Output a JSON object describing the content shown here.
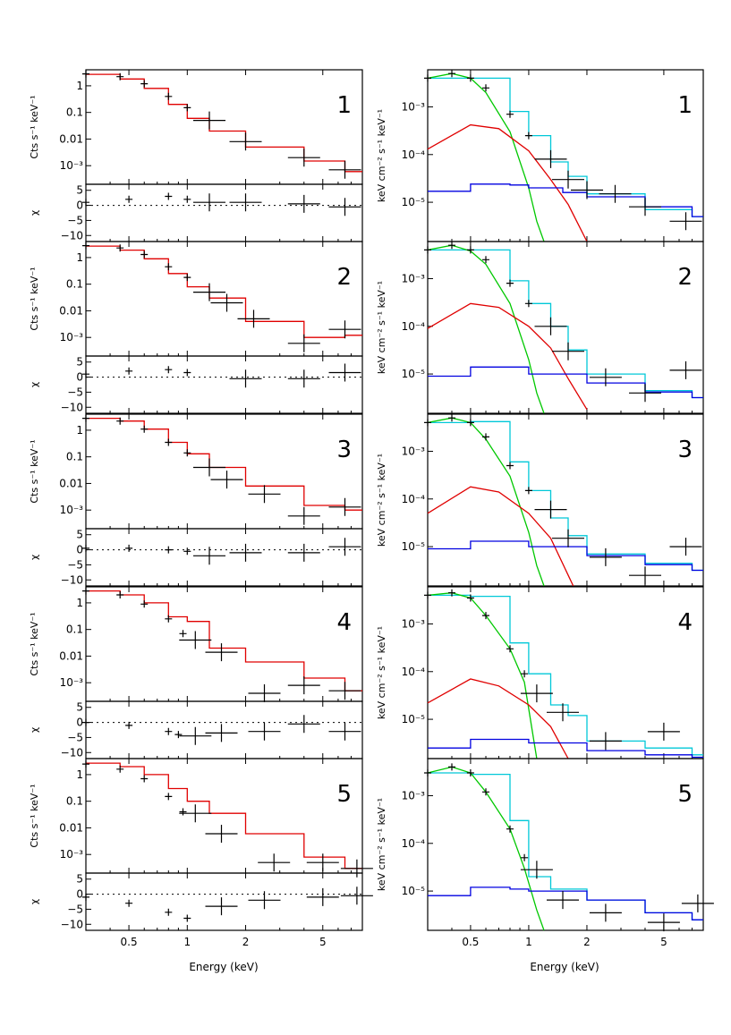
{
  "colors": {
    "data": "#000000",
    "model": "#e00000",
    "total": "#00c8d8",
    "soft": "#00c800",
    "mid": "#e00000",
    "hard": "#0000e0"
  },
  "left_ylabel": "Cts s⁻¹ keV⁻¹",
  "resid_ylabel": "χ",
  "right_ylabel": "keV cm⁻² s⁻¹ keV⁻¹",
  "xlabel": "Energy (keV)",
  "xticks": [
    "0.5",
    "1",
    "2",
    "5"
  ],
  "left_yticks": [
    "1",
    "0.1",
    "0.01",
    "10⁻³"
  ],
  "resid_yticks": [
    "5",
    "0",
    "−5",
    "−10"
  ],
  "right_yticks": [
    "10⁻³",
    "10⁻⁴",
    "10⁻⁵"
  ],
  "chart_data": [
    {
      "type": "line",
      "panel": "counts",
      "title": "1",
      "xlabel": "Energy (keV)",
      "ylabel": "Cts s⁻¹ keV⁻¹",
      "xlim": [
        0.3,
        8
      ],
      "ylim": [
        0.0002,
        4
      ],
      "series": [
        {
          "name": "data",
          "x": [
            0.3,
            0.45,
            0.6,
            0.8,
            1.0,
            1.3,
            2.0,
            4.0,
            6.5
          ],
          "y": [
            2.8,
            2.2,
            1.2,
            0.4,
            0.15,
            0.05,
            0.008,
            0.002,
            0.0007
          ]
        },
        {
          "name": "model",
          "x": [
            0.3,
            0.45,
            0.6,
            0.8,
            1.0,
            1.3,
            2.0,
            4.0,
            6.5
          ],
          "y": [
            2.7,
            1.8,
            0.8,
            0.2,
            0.06,
            0.02,
            0.005,
            0.0015,
            0.0006
          ]
        }
      ]
    },
    {
      "type": "scatter",
      "panel": "residuals",
      "title": "1",
      "ylabel": "χ",
      "ylim": [
        -12,
        7
      ],
      "x": [
        0.3,
        0.5,
        0.8,
        1.0,
        1.3,
        2.0,
        4.0,
        6.5
      ],
      "y": [
        1,
        2,
        3,
        2,
        1,
        1,
        0.5,
        -0.5
      ]
    },
    {
      "type": "line",
      "panel": "counts",
      "title": "2",
      "xlim": [
        0.3,
        8
      ],
      "ylim": [
        0.0002,
        4
      ],
      "series": [
        {
          "name": "data",
          "x": [
            0.3,
            0.45,
            0.6,
            0.8,
            1.0,
            1.3,
            1.6,
            2.2,
            4.0,
            6.5
          ],
          "y": [
            2.8,
            2.3,
            1.3,
            0.45,
            0.18,
            0.05,
            0.02,
            0.005,
            0.0006,
            0.002
          ]
        },
        {
          "name": "model",
          "x": [
            0.3,
            0.45,
            0.6,
            0.8,
            1.0,
            1.3,
            2.0,
            4.0,
            6.5
          ],
          "y": [
            2.7,
            1.9,
            0.9,
            0.25,
            0.08,
            0.03,
            0.004,
            0.001,
            0.0012
          ]
        }
      ]
    },
    {
      "type": "scatter",
      "panel": "residuals",
      "title": "2",
      "ylim": [
        -12,
        7
      ],
      "x": [
        0.3,
        0.5,
        0.8,
        1.0,
        2.0,
        4.0,
        6.5
      ],
      "y": [
        1,
        2,
        2.5,
        1.5,
        -0.5,
        -0.5,
        1.5
      ]
    },
    {
      "type": "line",
      "panel": "counts",
      "title": "3",
      "xlim": [
        0.3,
        8
      ],
      "ylim": [
        0.0002,
        4
      ],
      "series": [
        {
          "name": "data",
          "x": [
            0.3,
            0.45,
            0.6,
            0.8,
            1.0,
            1.3,
            1.6,
            2.5,
            4.0,
            6.5
          ],
          "y": [
            2.8,
            2.2,
            1.1,
            0.35,
            0.14,
            0.04,
            0.014,
            0.004,
            0.0006,
            0.0013
          ]
        },
        {
          "name": "model",
          "x": [
            0.3,
            0.45,
            0.6,
            0.8,
            1.0,
            1.3,
            2.0,
            4.0,
            6.5
          ],
          "y": [
            2.8,
            2.2,
            1.1,
            0.35,
            0.13,
            0.04,
            0.008,
            0.0015,
            0.001
          ]
        }
      ]
    },
    {
      "type": "scatter",
      "panel": "residuals",
      "title": "3",
      "ylim": [
        -12,
        7
      ],
      "x": [
        0.3,
        0.5,
        0.8,
        1.0,
        1.3,
        2.0,
        4.0,
        6.5
      ],
      "y": [
        0.5,
        0.5,
        0,
        -0.5,
        -2,
        -1,
        -1,
        1
      ]
    },
    {
      "type": "line",
      "panel": "counts",
      "title": "4",
      "xlim": [
        0.3,
        8
      ],
      "ylim": [
        0.0002,
        4
      ],
      "series": [
        {
          "name": "data",
          "x": [
            0.3,
            0.45,
            0.6,
            0.8,
            0.95,
            1.1,
            1.5,
            2.5,
            4.0,
            6.5
          ],
          "y": [
            2.8,
            2.0,
            0.9,
            0.25,
            0.07,
            0.04,
            0.014,
            0.0004,
            0.0008,
            0.0005
          ]
        },
        {
          "name": "model",
          "x": [
            0.3,
            0.45,
            0.6,
            0.8,
            1.0,
            1.3,
            2.0,
            4.0,
            6.5
          ],
          "y": [
            2.8,
            2.0,
            1.0,
            0.3,
            0.2,
            0.02,
            0.006,
            0.0015,
            0.0005
          ]
        }
      ]
    },
    {
      "type": "scatter",
      "panel": "residuals",
      "title": "4",
      "ylim": [
        -12,
        7
      ],
      "x": [
        0.3,
        0.5,
        0.8,
        0.9,
        1.1,
        1.5,
        2.5,
        4.0,
        6.5
      ],
      "y": [
        0,
        -1,
        -3,
        -4,
        -4.5,
        -3.5,
        -3,
        -0.5,
        -3
      ]
    },
    {
      "type": "line",
      "panel": "counts",
      "title": "5",
      "xlim": [
        0.3,
        8
      ],
      "ylim": [
        0.0002,
        4
      ],
      "series": [
        {
          "name": "data",
          "x": [
            0.3,
            0.45,
            0.6,
            0.8,
            0.95,
            1.1,
            1.5,
            2.8,
            5.0,
            7.5
          ],
          "y": [
            2.5,
            1.6,
            0.7,
            0.15,
            0.04,
            0.035,
            0.006,
            0.0005,
            0.0005,
            0.0003
          ]
        },
        {
          "name": "model",
          "x": [
            0.3,
            0.45,
            0.6,
            0.8,
            1.0,
            1.3,
            2.0,
            4.0,
            6.5
          ],
          "y": [
            2.7,
            2.0,
            1.0,
            0.3,
            0.1,
            0.035,
            0.006,
            0.0008,
            0.0003
          ]
        }
      ]
    },
    {
      "type": "scatter",
      "panel": "residuals",
      "title": "5",
      "ylim": [
        -12,
        7
      ],
      "x": [
        0.3,
        0.5,
        0.8,
        1.0,
        1.5,
        2.5,
        5.0,
        7.5
      ],
      "y": [
        -1,
        -3,
        -6,
        -8,
        -4,
        -2,
        -1,
        -0.5
      ]
    },
    {
      "type": "line",
      "panel": "unfolded",
      "title": "1",
      "ylabel": "keV cm⁻² s⁻¹ keV⁻¹",
      "xlim": [
        0.3,
        8
      ],
      "ylim": [
        1.5e-06,
        0.006
      ],
      "series": [
        {
          "name": "data",
          "x": [
            0.3,
            0.4,
            0.5,
            0.6,
            0.8,
            1.0,
            1.3,
            1.6,
            2.0,
            2.8,
            4.0,
            6.5
          ],
          "y": [
            0.004,
            0.005,
            0.004,
            0.0025,
            0.0007,
            0.00025,
            8e-05,
            3e-05,
            1.8e-05,
            1.5e-05,
            8e-06,
            4e-06
          ]
        },
        {
          "name": "total",
          "x": [
            0.3,
            0.5,
            0.8,
            1.0,
            1.3,
            1.6,
            2.0,
            4.0,
            7.0
          ],
          "y": [
            0.004,
            0.004,
            0.0008,
            0.00025,
            7e-05,
            3.5e-05,
            1.5e-05,
            7e-06,
            5e-06
          ]
        },
        {
          "name": "soft",
          "x": [
            0.3,
            0.4,
            0.5,
            0.6,
            0.8,
            1.0,
            1.1,
            1.2
          ],
          "y": [
            0.004,
            0.005,
            0.004,
            0.002,
            0.0003,
            2e-05,
            4e-06,
            1.5e-06
          ]
        },
        {
          "name": "mid",
          "x": [
            0.3,
            0.5,
            0.7,
            1.0,
            1.3,
            1.6,
            2.0
          ],
          "y": [
            0.00013,
            0.00042,
            0.00035,
            0.00012,
            3e-05,
            9e-06,
            1.5e-06
          ]
        },
        {
          "name": "hard",
          "x": [
            0.3,
            0.5,
            0.8,
            1.0,
            1.5,
            2.0,
            4.0,
            7.0
          ],
          "y": [
            1.7e-05,
            2.4e-05,
            2.3e-05,
            2e-05,
            1.6e-05,
            1.3e-05,
            8e-06,
            5e-06
          ]
        }
      ]
    },
    {
      "type": "line",
      "panel": "unfolded",
      "title": "2",
      "xlim": [
        0.3,
        8
      ],
      "ylim": [
        1.5e-06,
        0.006
      ],
      "series": [
        {
          "name": "data",
          "x": [
            0.3,
            0.4,
            0.5,
            0.6,
            0.8,
            1.0,
            1.3,
            1.6,
            2.5,
            4.0,
            6.5
          ],
          "y": [
            0.004,
            0.005,
            0.004,
            0.0025,
            0.0008,
            0.0003,
            0.0001,
            3e-05,
            8.5e-06,
            4e-06,
            1.2e-05
          ]
        },
        {
          "name": "total",
          "x": [
            0.3,
            0.5,
            0.8,
            1.0,
            1.3,
            1.6,
            2.0,
            4.0,
            7.0
          ],
          "y": [
            0.004,
            0.004,
            0.0009,
            0.0003,
            0.0001,
            3.2e-05,
            1e-05,
            4.5e-06,
            3.2e-06
          ]
        },
        {
          "name": "soft",
          "x": [
            0.3,
            0.4,
            0.5,
            0.6,
            0.8,
            1.0,
            1.1,
            1.2
          ],
          "y": [
            0.004,
            0.005,
            0.0038,
            0.002,
            0.0003,
            2e-05,
            4e-06,
            1.5e-06
          ]
        },
        {
          "name": "mid",
          "x": [
            0.3,
            0.5,
            0.7,
            1.0,
            1.3,
            1.6,
            2.0
          ],
          "y": [
            9e-05,
            0.0003,
            0.00025,
            0.0001,
            3.5e-05,
            8e-06,
            1.8e-06
          ]
        },
        {
          "name": "hard",
          "x": [
            0.3,
            0.5,
            1.0,
            2.0,
            4.0,
            7.0
          ],
          "y": [
            9e-06,
            1.4e-05,
            1e-05,
            6.5e-06,
            4.2e-06,
            3.2e-06
          ]
        }
      ]
    },
    {
      "type": "line",
      "panel": "unfolded",
      "title": "3",
      "xlim": [
        0.3,
        8
      ],
      "ylim": [
        1.5e-06,
        0.006
      ],
      "series": [
        {
          "name": "data",
          "x": [
            0.3,
            0.4,
            0.5,
            0.6,
            0.8,
            1.0,
            1.3,
            1.6,
            2.5,
            4.0,
            6.5
          ],
          "y": [
            0.004,
            0.005,
            0.004,
            0.002,
            0.0005,
            0.00015,
            6e-05,
            1.5e-05,
            6e-06,
            2.5e-06,
            1e-05
          ]
        },
        {
          "name": "total",
          "x": [
            0.3,
            0.5,
            0.8,
            1.0,
            1.3,
            1.6,
            2.0,
            4.0,
            7.0
          ],
          "y": [
            0.004,
            0.0042,
            0.0006,
            0.00015,
            4e-05,
            1.7e-05,
            7e-06,
            4.5e-06,
            3.2e-06
          ]
        },
        {
          "name": "soft",
          "x": [
            0.3,
            0.4,
            0.5,
            0.6,
            0.8,
            1.0,
            1.1,
            1.2
          ],
          "y": [
            0.004,
            0.005,
            0.004,
            0.0018,
            0.0003,
            2e-05,
            4e-06,
            1.5e-06
          ]
        },
        {
          "name": "mid",
          "x": [
            0.3,
            0.5,
            0.7,
            1.0,
            1.3,
            1.7
          ],
          "y": [
            5e-05,
            0.00018,
            0.00014,
            5e-05,
            1.5e-05,
            1.5e-06
          ]
        },
        {
          "name": "hard",
          "x": [
            0.3,
            0.5,
            1.0,
            2.0,
            4.0,
            7.0
          ],
          "y": [
            9e-06,
            1.3e-05,
            1e-05,
            6.5e-06,
            4.2e-06,
            3.2e-06
          ]
        }
      ]
    },
    {
      "type": "line",
      "panel": "unfolded",
      "title": "4",
      "xlim": [
        0.3,
        8
      ],
      "ylim": [
        1.5e-06,
        0.006
      ],
      "series": [
        {
          "name": "data",
          "x": [
            0.3,
            0.4,
            0.5,
            0.6,
            0.8,
            0.95,
            1.1,
            1.5,
            2.5,
            5.0
          ],
          "y": [
            0.004,
            0.0045,
            0.0035,
            0.0015,
            0.0003,
            9e-05,
            3.5e-05,
            1.4e-05,
            3.5e-06,
            5.5e-06
          ]
        },
        {
          "name": "total",
          "x": [
            0.3,
            0.5,
            0.8,
            1.0,
            1.3,
            1.6,
            2.0,
            4.0,
            7.0
          ],
          "y": [
            0.004,
            0.0038,
            0.0004,
            9e-05,
            2e-05,
            1.2e-05,
            3.5e-06,
            2.5e-06,
            1.8e-06
          ]
        },
        {
          "name": "soft",
          "x": [
            0.3,
            0.4,
            0.5,
            0.6,
            0.8,
            0.95,
            1.1
          ],
          "y": [
            0.004,
            0.0045,
            0.0035,
            0.0015,
            0.0003,
            6e-05,
            1.5e-06
          ]
        },
        {
          "name": "mid",
          "x": [
            0.3,
            0.5,
            0.7,
            1.0,
            1.3,
            1.6
          ],
          "y": [
            2.2e-05,
            7e-05,
            5e-05,
            2e-05,
            7e-06,
            1.5e-06
          ]
        },
        {
          "name": "hard",
          "x": [
            0.3,
            0.5,
            1.0,
            2.0,
            4.0,
            7.0
          ],
          "y": [
            2.5e-06,
            3.8e-06,
            3.2e-06,
            2.2e-06,
            1.8e-06,
            1.6e-06
          ]
        }
      ]
    },
    {
      "type": "line",
      "panel": "unfolded",
      "title": "5",
      "xlim": [
        0.3,
        8
      ],
      "ylim": [
        1.5e-06,
        0.006
      ],
      "series": [
        {
          "name": "data",
          "x": [
            0.3,
            0.4,
            0.5,
            0.6,
            0.8,
            0.95,
            1.1,
            1.5,
            2.5,
            5.0,
            7.5
          ],
          "y": [
            0.003,
            0.004,
            0.003,
            0.0012,
            0.0002,
            5e-05,
            2.8e-05,
            6.5e-06,
            3.5e-06,
            2.2e-06,
            5.5e-06
          ]
        },
        {
          "name": "total",
          "x": [
            0.3,
            0.5,
            0.8,
            1.0,
            1.3,
            2.0,
            4.0,
            7.0
          ],
          "y": [
            0.003,
            0.0028,
            0.0003,
            2e-05,
            1.1e-05,
            6.5e-06,
            3.5e-06,
            2.5e-06
          ]
        },
        {
          "name": "soft",
          "x": [
            0.3,
            0.4,
            0.5,
            0.6,
            0.8,
            0.95,
            1.1,
            1.2
          ],
          "y": [
            0.003,
            0.004,
            0.003,
            0.0012,
            0.0002,
            3e-05,
            4e-06,
            1.5e-06
          ]
        },
        {
          "name": "hard",
          "x": [
            0.3,
            0.5,
            0.8,
            1.0,
            2.0,
            4.0,
            7.0
          ],
          "y": [
            8e-06,
            1.2e-05,
            1.1e-05,
            1e-05,
            6.5e-06,
            3.5e-06,
            2.5e-06
          ]
        }
      ]
    }
  ]
}
